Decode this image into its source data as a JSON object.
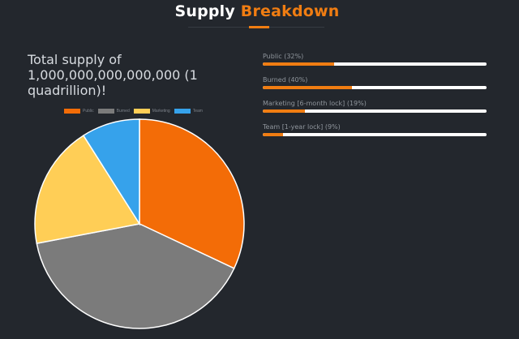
{
  "heading": {
    "title_plain": "Supply",
    "title_accent": "Breakdown"
  },
  "supply_text": "Total supply of 1,000,000,000,000,000 (1 quadrillion)!",
  "colors": {
    "accent": "#f07d12",
    "background": "#23272d",
    "track": "#ffffff"
  },
  "progress": [
    {
      "label": "Public (32%)",
      "percent": 32
    },
    {
      "label": "Burned (40%)",
      "percent": 40
    },
    {
      "label": "Marketing [6-month lock] (19%)",
      "percent": 19
    },
    {
      "label": "Team [1-year lock] (9%)",
      "percent": 9
    }
  ],
  "chart_data": {
    "type": "pie",
    "title": "",
    "legend_position": "top",
    "categories": [
      "Public",
      "Burned",
      "Marketing",
      "Team"
    ],
    "values": [
      32,
      40,
      19,
      9
    ],
    "colors": [
      "#f36c07",
      "#7b7b7b",
      "#ffce56",
      "#36a2eb"
    ]
  }
}
